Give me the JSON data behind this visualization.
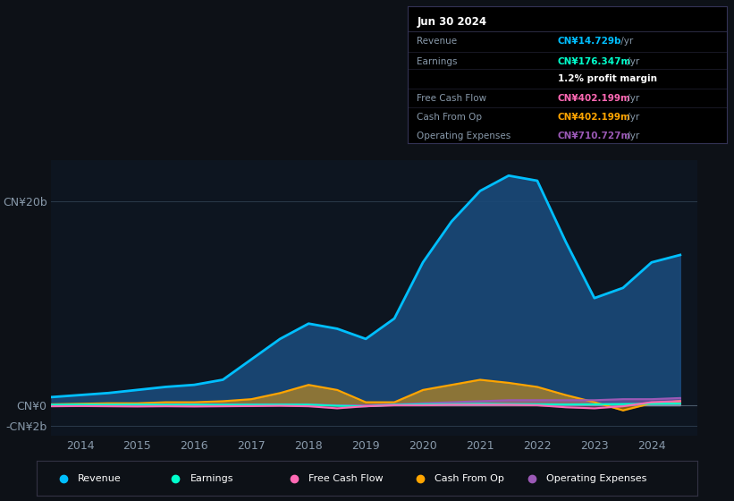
{
  "background_color": "#0d1117",
  "chart_bg_color": "#0d1520",
  "years": [
    2013.5,
    2014,
    2014.5,
    2015,
    2015.5,
    2016,
    2016.5,
    2017,
    2017.5,
    2018,
    2018.5,
    2019,
    2019.5,
    2020,
    2020.5,
    2021,
    2021.5,
    2022,
    2022.5,
    2023,
    2023.5,
    2024,
    2024.5
  ],
  "revenue": [
    0.8,
    1.0,
    1.2,
    1.5,
    1.8,
    2.0,
    2.5,
    4.5,
    6.5,
    8.0,
    7.5,
    6.5,
    8.5,
    14.0,
    18.0,
    21.0,
    22.5,
    22.0,
    16.0,
    10.5,
    11.5,
    14.0,
    14.729
  ],
  "earnings": [
    0.05,
    0.08,
    0.06,
    0.07,
    0.05,
    0.06,
    0.05,
    0.06,
    0.07,
    0.06,
    -0.05,
    -0.1,
    0.05,
    0.1,
    0.12,
    0.15,
    0.12,
    0.1,
    0.08,
    0.1,
    0.12,
    0.15,
    0.176
  ],
  "free_cash_flow": [
    -0.1,
    -0.08,
    -0.1,
    -0.12,
    -0.1,
    -0.12,
    -0.1,
    -0.08,
    -0.05,
    -0.1,
    -0.3,
    -0.1,
    0.0,
    0.0,
    0.05,
    0.05,
    0.05,
    0.0,
    -0.2,
    -0.3,
    -0.1,
    0.3,
    0.402
  ],
  "cash_from_op": [
    0.1,
    0.15,
    0.2,
    0.2,
    0.3,
    0.3,
    0.4,
    0.6,
    1.2,
    2.0,
    1.5,
    0.3,
    0.3,
    1.5,
    2.0,
    2.5,
    2.2,
    1.8,
    1.0,
    0.3,
    -0.5,
    0.2,
    0.402
  ],
  "operating_expenses": [
    0.05,
    0.06,
    0.07,
    0.08,
    0.09,
    0.1,
    0.1,
    0.1,
    0.1,
    0.1,
    0.0,
    0.0,
    0.1,
    0.2,
    0.3,
    0.4,
    0.5,
    0.5,
    0.5,
    0.5,
    0.6,
    0.6,
    0.711
  ],
  "revenue_color": "#00bfff",
  "earnings_color": "#00ffcc",
  "free_cash_flow_color": "#ff69b4",
  "cash_from_op_color": "#ffa500",
  "operating_expenses_color": "#9b59b6",
  "revenue_fill": "#1a4a7a",
  "xticks": [
    2014,
    2015,
    2016,
    2017,
    2018,
    2019,
    2020,
    2021,
    2022,
    2023,
    2024
  ],
  "ylim": [
    -3,
    24
  ],
  "xlim": [
    2013.5,
    2024.8
  ],
  "grid_color": "#2a3a4a",
  "text_color": "#8899aa",
  "white_color": "#ffffff",
  "tooltip_bg": "#000000",
  "tooltip_title": "Jun 30 2024",
  "tooltip_rows": [
    {
      "label": "Revenue",
      "value": "CN¥14.729b /yr",
      "color": "#00bfff"
    },
    {
      "label": "Earnings",
      "value": "CN¥176.347m /yr",
      "color": "#00ffcc"
    },
    {
      "label": "",
      "value": "1.2% profit margin",
      "color": "#ffffff"
    },
    {
      "label": "Free Cash Flow",
      "value": "CN¥402.199m /yr",
      "color": "#ff69b4"
    },
    {
      "label": "Cash From Op",
      "value": "CN¥402.199m /yr",
      "color": "#ffa500"
    },
    {
      "label": "Operating Expenses",
      "value": "CN¥710.727m /yr",
      "color": "#9b59b6"
    }
  ],
  "legend_items": [
    {
      "label": "Revenue",
      "color": "#00bfff"
    },
    {
      "label": "Earnings",
      "color": "#00ffcc"
    },
    {
      "label": "Free Cash Flow",
      "color": "#ff69b4"
    },
    {
      "label": "Cash From Op",
      "color": "#ffa500"
    },
    {
      "label": "Operating Expenses",
      "color": "#9b59b6"
    }
  ]
}
